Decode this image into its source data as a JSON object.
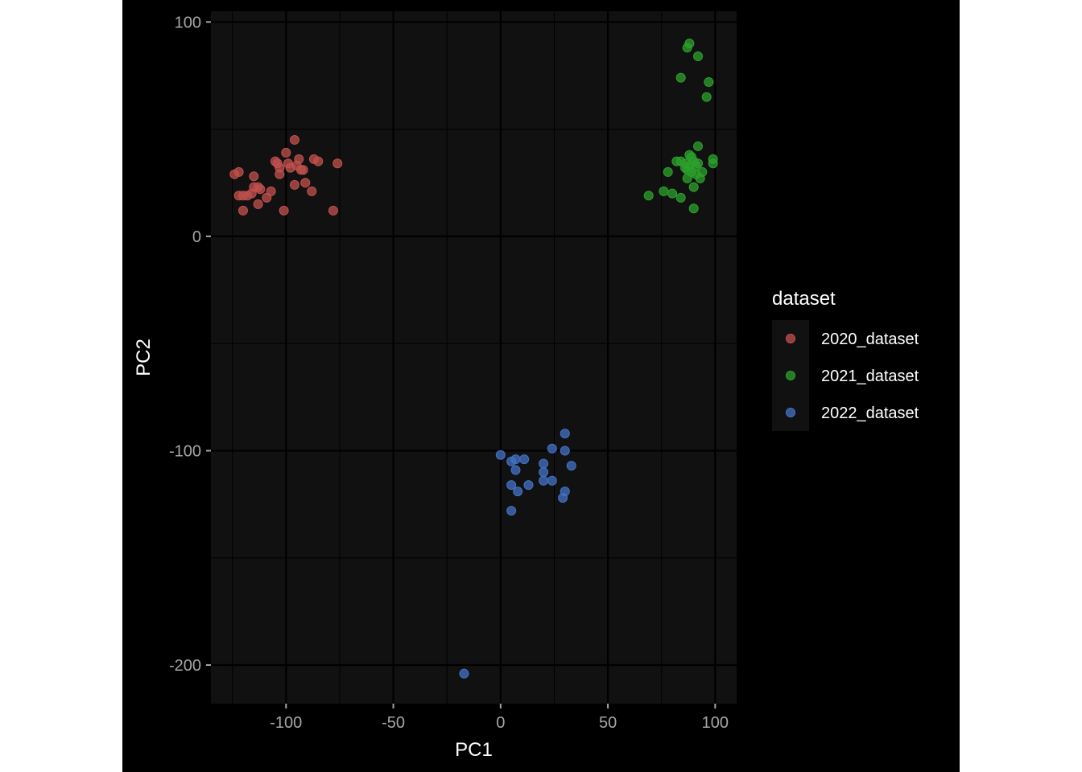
{
  "chart_data": {
    "type": "scatter",
    "xlabel": "PC1",
    "ylabel": "PC2",
    "xlim": [
      -135,
      110
    ],
    "ylim": [
      -218,
      105
    ],
    "x_ticks": [
      -100,
      -50,
      0,
      50,
      100
    ],
    "x_tick_labels": [
      "-100",
      "-50",
      "0",
      "50",
      "100"
    ],
    "y_ticks": [
      -200,
      -100,
      0,
      100
    ],
    "y_tick_labels": [
      "-200",
      "-100",
      "0",
      "100"
    ],
    "grid": true,
    "legend_position": "right",
    "legend_title": "dataset",
    "panel_color": "#111111",
    "series": [
      {
        "name": "2020_dataset",
        "color": "#c0504d",
        "points": [
          [
            -124,
            29
          ],
          [
            -122,
            30
          ],
          [
            -122,
            19
          ],
          [
            -120,
            19
          ],
          [
            -120,
            12
          ],
          [
            -118,
            19
          ],
          [
            -116,
            20
          ],
          [
            -115,
            28
          ],
          [
            -115,
            23
          ],
          [
            -113,
            23
          ],
          [
            -113,
            15
          ],
          [
            -112,
            22
          ],
          [
            -109,
            18
          ],
          [
            -107,
            21
          ],
          [
            -105,
            35
          ],
          [
            -104,
            34
          ],
          [
            -103,
            32
          ],
          [
            -103,
            29
          ],
          [
            -101,
            12
          ],
          [
            -100,
            39
          ],
          [
            -99,
            34
          ],
          [
            -98,
            32
          ],
          [
            -96,
            45
          ],
          [
            -96,
            24
          ],
          [
            -95,
            33
          ],
          [
            -94,
            36
          ],
          [
            -93,
            31
          ],
          [
            -92,
            31
          ],
          [
            -91,
            25
          ],
          [
            -88,
            21
          ],
          [
            -87,
            36
          ],
          [
            -85,
            35
          ],
          [
            -78,
            12
          ],
          [
            -76,
            34
          ]
        ]
      },
      {
        "name": "2021_dataset",
        "color": "#2ca02c",
        "points": [
          [
            87,
            88
          ],
          [
            88,
            90
          ],
          [
            92,
            84
          ],
          [
            84,
            74
          ],
          [
            97,
            72
          ],
          [
            96,
            65
          ],
          [
            69,
            19
          ],
          [
            76,
            21
          ],
          [
            78,
            30
          ],
          [
            80,
            20
          ],
          [
            82,
            35
          ],
          [
            84,
            35
          ],
          [
            84,
            18
          ],
          [
            86,
            34
          ],
          [
            86,
            32
          ],
          [
            87,
            31
          ],
          [
            87,
            27
          ],
          [
            88,
            38
          ],
          [
            88,
            33
          ],
          [
            89,
            37
          ],
          [
            89,
            30
          ],
          [
            90,
            23
          ],
          [
            90,
            13
          ],
          [
            90,
            35
          ],
          [
            91,
            33
          ],
          [
            91,
            29
          ],
          [
            92,
            42
          ],
          [
            92,
            34
          ],
          [
            93,
            27
          ],
          [
            94,
            30
          ],
          [
            99,
            36
          ],
          [
            99,
            34
          ]
        ]
      },
      {
        "name": "2022_dataset",
        "color": "#4472c4",
        "points": [
          [
            0,
            -102
          ],
          [
            5,
            -105
          ],
          [
            5,
            -116
          ],
          [
            5,
            -128
          ],
          [
            7,
            -104
          ],
          [
            7,
            -109
          ],
          [
            8,
            -119
          ],
          [
            11,
            -104
          ],
          [
            13,
            -116
          ],
          [
            20,
            -106
          ],
          [
            20,
            -110
          ],
          [
            20,
            -114
          ],
          [
            24,
            -99
          ],
          [
            24,
            -114
          ],
          [
            29,
            -122
          ],
          [
            30,
            -119
          ],
          [
            30,
            -92
          ],
          [
            30,
            -100
          ],
          [
            33,
            -107
          ],
          [
            -17,
            -204
          ]
        ]
      }
    ]
  }
}
